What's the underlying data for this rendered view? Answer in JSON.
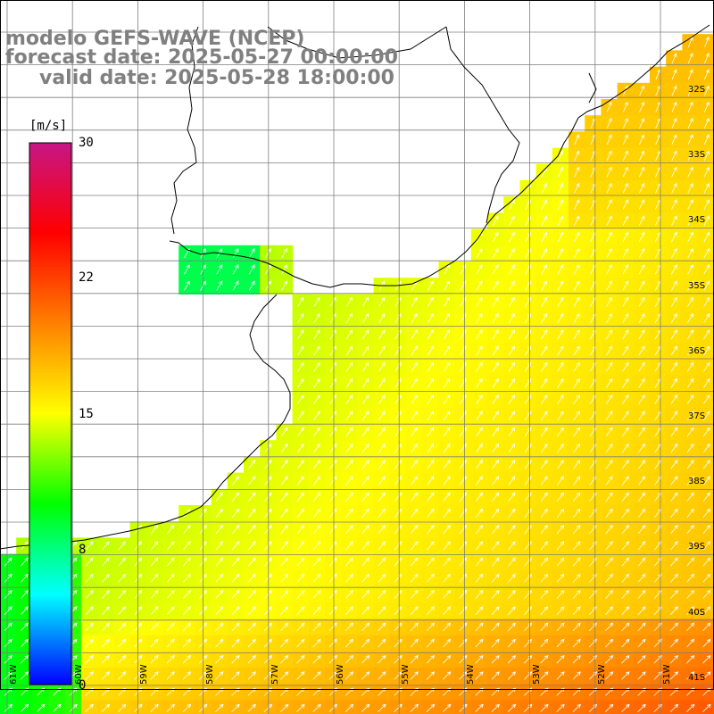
{
  "title": {
    "model": "modelo GEFS-WAVE (NCEP)",
    "forecast": "forecast date: 2025-05-27 00:00:00",
    "valid": "valid date: 2025-05-28 18:00:00"
  },
  "colorbar": {
    "unit": "[m/s]",
    "ticks": [
      "30",
      "22",
      "15",
      "8",
      "0"
    ],
    "min": 0,
    "max": 30,
    "colors": [
      "#0000ff",
      "#00ffff",
      "#00ff00",
      "#ffff00",
      "#ff8000",
      "#ff0000",
      "#c71585"
    ]
  },
  "lat_labels": [
    "32S",
    "33S",
    "34S",
    "35S",
    "36S",
    "37S",
    "38S",
    "39S",
    "40S",
    "41S"
  ],
  "lon_labels": [
    "61W",
    "60W",
    "59W",
    "58W",
    "57W",
    "56W",
    "55W",
    "54W",
    "53W",
    "52W",
    "51W"
  ],
  "colors": {
    "grid": "#7f7f7f",
    "coast": "#000000",
    "arrow": "#ffffff",
    "title": "#808080"
  }
}
